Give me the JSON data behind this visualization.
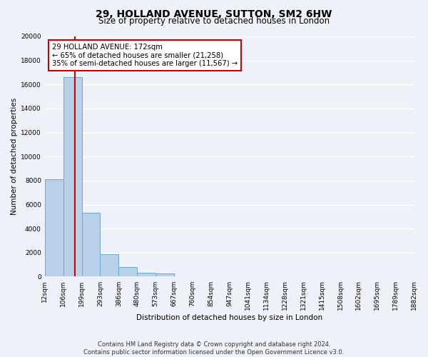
{
  "title": "29, HOLLAND AVENUE, SUTTON, SM2 6HW",
  "subtitle": "Size of property relative to detached houses in London",
  "xlabel": "Distribution of detached houses by size in London",
  "ylabel": "Number of detached properties",
  "bin_labels": [
    "12sqm",
    "106sqm",
    "199sqm",
    "293sqm",
    "386sqm",
    "480sqm",
    "573sqm",
    "667sqm",
    "760sqm",
    "854sqm",
    "947sqm",
    "1041sqm",
    "1134sqm",
    "1228sqm",
    "1321sqm",
    "1415sqm",
    "1508sqm",
    "1602sqm",
    "1695sqm",
    "1789sqm",
    "1882sqm"
  ],
  "bar_values": [
    8100,
    16600,
    5300,
    1850,
    800,
    310,
    280,
    0,
    0,
    0,
    0,
    0,
    0,
    0,
    0,
    0,
    0,
    0,
    0,
    0
  ],
  "bar_color": "#b8d0e8",
  "bar_edge_color": "#6aaad4",
  "property_line_x": 1.65,
  "property_line_color": "#cc0000",
  "ylim": [
    0,
    20000
  ],
  "yticks": [
    0,
    2000,
    4000,
    6000,
    8000,
    10000,
    12000,
    14000,
    16000,
    18000,
    20000
  ],
  "annotation_title": "29 HOLLAND AVENUE: 172sqm",
  "annotation_line1": "← 65% of detached houses are smaller (21,258)",
  "annotation_line2": "35% of semi-detached houses are larger (11,567) →",
  "annotation_box_color": "#ffffff",
  "annotation_box_edge_color": "#cc0000",
  "footer_line1": "Contains HM Land Registry data © Crown copyright and database right 2024.",
  "footer_line2": "Contains public sector information licensed under the Open Government Licence v3.0.",
  "bg_color": "#eef2f8",
  "plot_bg_color": "#eef2f8",
  "grid_color": "#ffffff",
  "title_fontsize": 10,
  "subtitle_fontsize": 8.5,
  "axis_label_fontsize": 7.5,
  "tick_fontsize": 6.5,
  "annotation_fontsize": 7.2,
  "footer_fontsize": 6.0
}
